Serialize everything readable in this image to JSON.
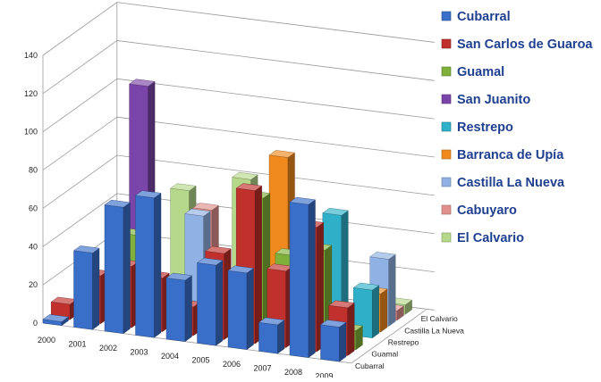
{
  "chart_data": {
    "type": "bar",
    "view": "3d-clustered",
    "categories": [
      "2000",
      "2001",
      "2002",
      "2003",
      "2004",
      "2005",
      "2006",
      "2007",
      "2008",
      "2009"
    ],
    "ylim": [
      0,
      140
    ],
    "yticks": [
      0,
      20,
      40,
      60,
      80,
      100,
      120,
      140
    ],
    "depth_axis_labels": [
      "El Calvario",
      "Castilla La Nueva",
      "Restrepo",
      "Guamal",
      "Cubarral"
    ],
    "grid": true,
    "legend_position": "right",
    "series": [
      {
        "name": "Cubarral",
        "color": "#3a6fc9",
        "values": [
          2,
          40,
          66,
          73,
          32,
          42,
          40,
          15,
          80,
          18
        ]
      },
      {
        "name": "San Carlos de Guaroa",
        "color": "#c0302c",
        "values": [
          8,
          25,
          32,
          28,
          15,
          45,
          80,
          40,
          65,
          25
        ]
      },
      {
        "name": "Guamal",
        "color": "#7fb13a",
        "values": [
          0,
          0,
          45,
          0,
          0,
          0,
          73,
          45,
          50,
          10
        ]
      },
      {
        "name": "San Juanito",
        "color": "#7a45a8",
        "values": [
          0,
          0,
          120,
          0,
          0,
          0,
          0,
          0,
          0,
          0
        ]
      },
      {
        "name": "Restrepo",
        "color": "#2fb0c8",
        "values": [
          0,
          0,
          0,
          0,
          10,
          0,
          0,
          0,
          62,
          25
        ]
      },
      {
        "name": "Barranca de Upía",
        "color": "#f08a1e",
        "values": [
          0,
          0,
          0,
          0,
          0,
          0,
          85,
          0,
          0,
          20
        ]
      },
      {
        "name": "Castilla La Nueva",
        "color": "#8fb1e3",
        "values": [
          0,
          0,
          0,
          45,
          0,
          0,
          45,
          0,
          0,
          35
        ]
      },
      {
        "name": "Cabuyaro",
        "color": "#e0908c",
        "values": [
          0,
          0,
          0,
          45,
          0,
          0,
          0,
          0,
          0,
          5
        ]
      },
      {
        "name": "El Calvario",
        "color": "#b5d88a",
        "values": [
          0,
          0,
          50,
          0,
          60,
          0,
          0,
          0,
          0,
          5
        ]
      }
    ]
  }
}
